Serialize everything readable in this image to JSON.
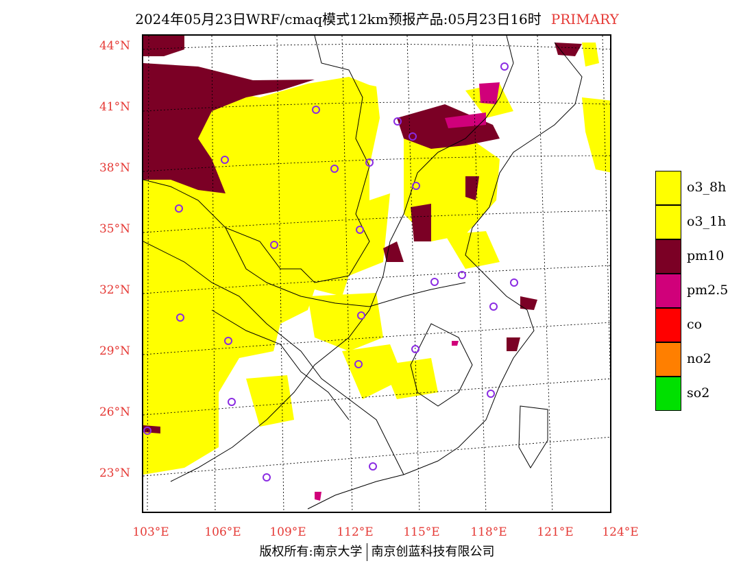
{
  "title": {
    "main": "2024年05月23日WRF/cmaq模式12km预报产品:05月23日16时",
    "tag": "PRIMARY"
  },
  "axes": {
    "lat_labels": [
      "44°N",
      "41°N",
      "38°N",
      "35°N",
      "32°N",
      "29°N",
      "26°N",
      "23°N"
    ],
    "lon_labels": [
      "103°E",
      "106°E",
      "109°E",
      "112°E",
      "115°E",
      "118°E",
      "121°E",
      "124°E"
    ]
  },
  "legend": {
    "items": [
      {
        "label": "o3_8h",
        "color": "#ffff00"
      },
      {
        "label": "o3_1h",
        "color": "#ffff00"
      },
      {
        "label": "pm10",
        "color": "#7b0025"
      },
      {
        "label": "pm2.5",
        "color": "#d0007a"
      },
      {
        "label": "co",
        "color": "#ff0000"
      },
      {
        "label": "no2",
        "color": "#ff7f00"
      },
      {
        "label": "so2",
        "color": "#00e000"
      }
    ]
  },
  "map": {
    "colors": {
      "o3": "#ffff00",
      "pm10": "#7b0025",
      "pm25": "#d0007a",
      "station": "#8a2be2"
    }
  },
  "footer": {
    "left": "版权所有:南京大学",
    "right": "南京创蓝科技有限公司"
  }
}
